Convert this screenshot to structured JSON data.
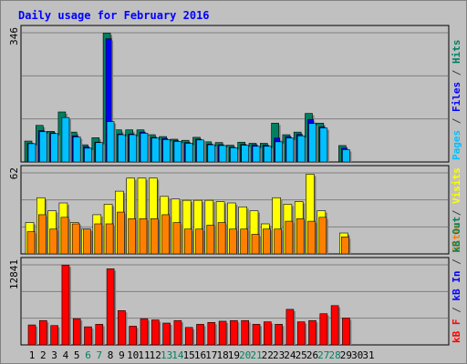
{
  "chart_data": {
    "type": "bar",
    "title": "Daily usage for February 2016",
    "categories": [
      "1",
      "2",
      "3",
      "4",
      "5",
      "6",
      "7",
      "8",
      "9",
      "10",
      "11",
      "12",
      "13",
      "14",
      "15",
      "16",
      "17",
      "18",
      "19",
      "20",
      "21",
      "22",
      "23",
      "24",
      "25",
      "26",
      "27",
      "28",
      "29",
      "30",
      "31"
    ],
    "weekend_days": [
      "6",
      "7",
      "13",
      "14",
      "20",
      "21",
      "27",
      "28"
    ],
    "panels": [
      {
        "id": "hits",
        "ymax": 346,
        "ymax_label": "346",
        "ylabel_parts": [
          {
            "text": "Pages",
            "color": "#00c0ff"
          },
          {
            "text": " / ",
            "color": "#404040"
          },
          {
            "text": "Files",
            "color": "#0000ff"
          },
          {
            "text": " / ",
            "color": "#404040"
          },
          {
            "text": "Hits",
            "color": "#008060"
          }
        ],
        "series": [
          {
            "name": "Hits",
            "color": "#008060",
            "values": [
              56,
              98,
              82,
              134,
              80,
              46,
              65,
              345,
              86,
              86,
              86,
              73,
              68,
              61,
              58,
              66,
              54,
              52,
              45,
              53,
              50,
              50,
              104,
              73,
              80,
              130,
              104,
              0,
              44,
              0,
              0
            ]
          },
          {
            "name": "Files",
            "color": "#0000ff",
            "values": [
              50,
              84,
              78,
              0,
              70,
              41,
              53,
              330,
              75,
              75,
              80,
              66,
              63,
              57,
              52,
              61,
              48,
              46,
              40,
              47,
              46,
              45,
              64,
              68,
              74,
              114,
              94,
              0,
              37,
              0,
              0
            ]
          },
          {
            "name": "Pages",
            "color": "#00c0ff",
            "values": [
              49,
              81,
              76,
              119,
              67,
              37,
              52,
              108,
              73,
              73,
              77,
              64,
              60,
              55,
              50,
              59,
              46,
              44,
              38,
              45,
              42,
              42,
              54,
              64,
              70,
              103,
              91,
              0,
              33,
              0,
              0
            ]
          }
        ]
      },
      {
        "id": "visits",
        "ymax": 62,
        "ymax_label": "62",
        "ylabel_parts": [
          {
            "text": "Sites",
            "color": "#ff8000"
          },
          {
            "text": " / ",
            "color": "#404040"
          },
          {
            "text": "Visits",
            "color": "#ffff00"
          }
        ],
        "series": [
          {
            "name": "Visits",
            "color": "#ffff00",
            "values": [
              24,
              43,
              33,
              39,
              24,
              19,
              30,
              38,
              48,
              58,
              58,
              58,
              44,
              42,
              41,
              41,
              41,
              40,
              39,
              36,
              33,
              23,
              43,
              38,
              40,
              61,
              33,
              0,
              16,
              0,
              0
            ]
          },
          {
            "name": "Sites",
            "color": "#ff8000",
            "values": [
              17,
              30,
              19,
              28,
              23,
              19,
              23,
              23,
              32,
              27,
              27,
              27,
              30,
              24,
              19,
              19,
              22,
              24,
              19,
              19,
              15,
              19,
              19,
              25,
              27,
              25,
              28,
              0,
              13,
              0,
              0
            ]
          }
        ]
      },
      {
        "id": "kbytes",
        "ymax": 12841,
        "ymax_label": "12841",
        "ylabel_parts": [
          {
            "text": "kB F",
            "color": "#ff0000"
          },
          {
            "text": " / ",
            "color": "#404040"
          },
          {
            "text": "kB In",
            "color": "#0000ff"
          },
          {
            "text": " / ",
            "color": "#404040"
          },
          {
            "text": "kB Out",
            "color": "#008060"
          }
        ],
        "series": [
          {
            "name": "kB F",
            "color": "#ff0000",
            "values": [
              3200,
              3900,
              3100,
              12800,
              4200,
              2900,
              3300,
              12200,
              5500,
              3000,
              4200,
              4000,
              3500,
              3900,
              2800,
              3300,
              3600,
              3800,
              3900,
              3900,
              3300,
              3700,
              3300,
              5700,
              3700,
              3900,
              5000,
              6300,
              4300,
              0,
              0
            ]
          }
        ]
      }
    ]
  }
}
